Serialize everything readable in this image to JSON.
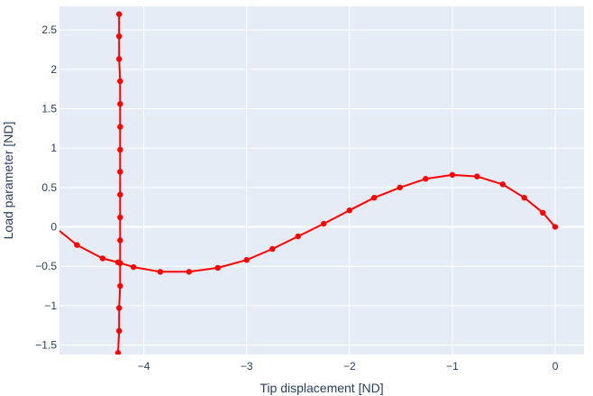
{
  "chart_data": {
    "type": "line",
    "title": "",
    "xlabel": "Tip displacement [ND]",
    "ylabel": "Load parameter [ND]",
    "xlim": [
      -4.82,
      0.28
    ],
    "ylim": [
      -1.62,
      2.8
    ],
    "x_ticks": [
      -4,
      -3,
      -2,
      -1,
      0
    ],
    "x_tick_labels": [
      "−4",
      "−3",
      "−2",
      "−1",
      "0"
    ],
    "y_ticks": [
      -1.5,
      -1,
      -0.5,
      0,
      0.5,
      1,
      1.5,
      2,
      2.5
    ],
    "y_tick_labels": [
      "−1.5",
      "−1",
      "−0.5",
      "0",
      "0.5",
      "1",
      "1.5",
      "2",
      "2.5"
    ],
    "grid": true,
    "plot_background": "#E5ECF6",
    "grid_color": "#ffffff",
    "series": [
      {
        "color": "#ff0000",
        "x": [
          0,
          -0.12,
          -0.3,
          -0.51,
          -0.76,
          -1.0,
          -1.26,
          -1.51,
          -1.76,
          -2.0,
          -2.25,
          -2.5,
          -2.75,
          -3.0,
          -3.28,
          -3.56,
          -3.84,
          -4.1,
          -4.25,
          -4.4,
          -4.65,
          -4.82
        ],
        "y": [
          0,
          0.18,
          0.37,
          0.54,
          0.64,
          0.66,
          0.61,
          0.5,
          0.37,
          0.21,
          0.04,
          -0.12,
          -0.28,
          -0.42,
          -0.52,
          -0.57,
          -0.57,
          -0.51,
          -0.45,
          -0.4,
          -0.23,
          -0.05
        ],
        "markers": [
          true,
          true,
          true,
          true,
          true,
          true,
          true,
          true,
          true,
          true,
          true,
          true,
          true,
          true,
          true,
          true,
          true,
          true,
          true,
          true,
          true,
          false
        ]
      },
      {
        "color": "#ff0000",
        "x": [
          -4.24,
          -4.24,
          -4.24,
          -4.23,
          -4.23,
          -4.23,
          -4.23,
          -4.23,
          -4.23,
          -4.23,
          -4.23,
          -4.23,
          -4.23,
          -4.24,
          -4.24,
          -4.25,
          -4.25,
          -4.26,
          -4.26
        ],
        "y": [
          2.7,
          2.42,
          2.13,
          1.85,
          1.56,
          1.27,
          0.98,
          0.7,
          0.41,
          0.12,
          -0.17,
          -0.46,
          -0.75,
          -1.03,
          -1.32,
          -1.6,
          -1.7,
          -1.85,
          -2.0
        ],
        "markers": [
          true,
          true,
          true,
          true,
          true,
          true,
          true,
          true,
          true,
          true,
          true,
          true,
          true,
          true,
          true,
          true,
          false,
          false,
          false
        ]
      }
    ]
  }
}
